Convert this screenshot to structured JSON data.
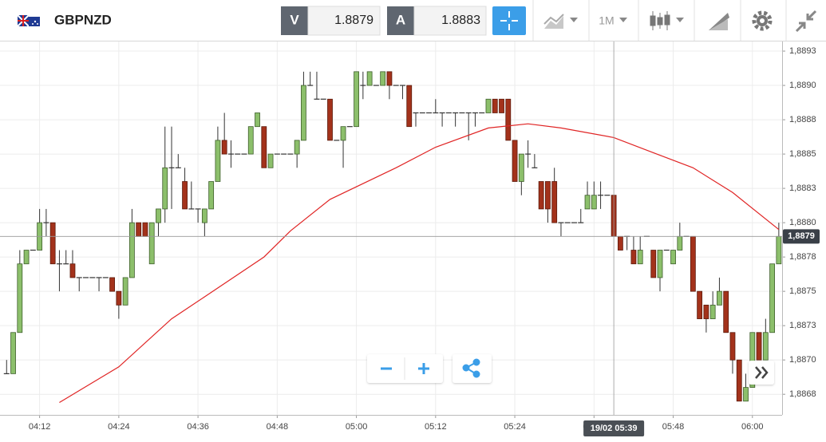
{
  "toolbar": {
    "symbol": "GBPNZD",
    "bid_label": "V",
    "bid": 1.8879,
    "ask_label": "A",
    "ask": 1.8883,
    "timeframe": "1M"
  },
  "chart_data": {
    "type": "candlestick",
    "x": [
      247,
      248,
      249,
      250,
      251,
      252,
      253,
      254,
      255,
      256,
      257,
      258,
      259,
      260,
      261,
      262,
      263,
      264,
      265,
      266,
      267,
      268,
      269,
      270,
      271,
      272,
      273,
      274,
      275,
      276,
      277,
      278,
      279,
      280,
      281,
      282,
      283,
      284,
      285,
      286,
      287,
      288,
      289,
      290,
      291,
      292,
      293,
      294,
      295,
      296,
      297,
      298,
      299,
      300,
      301,
      302,
      303,
      304,
      305,
      306,
      307,
      308,
      309,
      310,
      311,
      312,
      313,
      314,
      315,
      316,
      317,
      318,
      319,
      320,
      321,
      322,
      323,
      324,
      325,
      326,
      327,
      328,
      329,
      330,
      331,
      332,
      333,
      334,
      335,
      336,
      337,
      338,
      339,
      340,
      341,
      342,
      343,
      344,
      345,
      346,
      347,
      348,
      349,
      350,
      351,
      352,
      353,
      354,
      355,
      356,
      357,
      358,
      359,
      360,
      361,
      362,
      363,
      364
    ],
    "open": [
      1.8869,
      1.8869,
      1.8872,
      1.8877,
      1.8878,
      1.8878,
      1.888,
      1.888,
      1.8877,
      1.8877,
      1.8877,
      1.8876,
      1.8876,
      1.8876,
      1.8876,
      1.8876,
      1.8876,
      1.8875,
      1.8874,
      1.8876,
      1.888,
      1.888,
      1.8877,
      1.888,
      1.8881,
      1.8884,
      1.8884,
      1.8883,
      1.8881,
      1.8881,
      1.888,
      1.8881,
      1.8883,
      1.8886,
      1.8885,
      1.8885,
      1.8885,
      1.8885,
      1.8887,
      1.8887,
      1.8884,
      1.8885,
      1.8885,
      1.8885,
      1.8885,
      1.8886,
      1.889,
      1.8889,
      1.8889,
      1.8889,
      1.8886,
      1.8886,
      1.8887,
      1.8887,
      1.889,
      1.889,
      1.889,
      1.889,
      1.8891,
      1.889,
      1.889,
      1.889,
      1.8888,
      1.8888,
      1.8888,
      1.8888,
      1.8888,
      1.8888,
      1.8888,
      1.8888,
      1.8888,
      1.8888,
      1.8888,
      1.8888,
      1.8889,
      1.8889,
      1.8889,
      1.8886,
      1.8883,
      1.8885,
      1.8884,
      1.8883,
      1.8883,
      1.8883,
      1.888,
      1.888,
      1.888,
      1.888,
      1.8881,
      1.8881,
      1.8882,
      1.8882,
      1.8882,
      1.8879,
      1.8879,
      1.8878,
      1.8877,
      1.8879,
      1.8878,
      1.8876,
      1.8878,
      1.8877,
      1.8878,
      1.8879,
      1.8879,
      1.8875,
      1.8874,
      1.8873,
      1.8874,
      1.8875,
      1.8872,
      1.887,
      1.8867,
      1.8868,
      1.8872,
      1.887,
      1.8872,
      1.8877
    ],
    "high": [
      1.887,
      1.8872,
      1.8878,
      1.8878,
      1.8878,
      1.8881,
      1.8881,
      1.888,
      1.8878,
      1.8878,
      1.8878,
      1.8876,
      1.8876,
      1.8876,
      1.8876,
      1.8876,
      1.8876,
      1.8875,
      1.8876,
      1.8881,
      1.888,
      1.888,
      1.888,
      1.8881,
      1.8887,
      1.8887,
      1.8885,
      1.8884,
      1.8883,
      1.8881,
      1.8881,
      1.8883,
      1.8887,
      1.8888,
      1.8886,
      1.8885,
      1.8885,
      1.8887,
      1.8888,
      1.8887,
      1.8885,
      1.8885,
      1.8885,
      1.8885,
      1.8886,
      1.8891,
      1.8891,
      1.8891,
      1.8889,
      1.8889,
      1.8886,
      1.8887,
      1.8887,
      1.8891,
      1.8891,
      1.8891,
      1.889,
      1.8891,
      1.8891,
      1.889,
      1.889,
      1.889,
      1.8888,
      1.8888,
      1.8888,
      1.8889,
      1.8888,
      1.8888,
      1.8888,
      1.8888,
      1.8888,
      1.8888,
      1.8888,
      1.8889,
      1.8889,
      1.8889,
      1.8889,
      1.8886,
      1.8885,
      1.8886,
      1.8885,
      1.8883,
      1.8883,
      1.8884,
      1.888,
      1.888,
      1.888,
      1.8881,
      1.8883,
      1.8883,
      1.8883,
      1.8882,
      1.8882,
      1.8879,
      1.8879,
      1.8879,
      1.8879,
      1.8879,
      1.8878,
      1.8878,
      1.8878,
      1.8878,
      1.888,
      1.8879,
      1.8879,
      1.8875,
      1.8874,
      1.8875,
      1.8876,
      1.8875,
      1.8872,
      1.887,
      1.8869,
      1.8872,
      1.8872,
      1.8873,
      1.8877,
      1.888
    ],
    "low": [
      1.8869,
      1.8869,
      1.8872,
      1.8877,
      1.8878,
      1.8878,
      1.8879,
      1.8877,
      1.8875,
      1.8877,
      1.8876,
      1.8875,
      1.8876,
      1.8876,
      1.8875,
      1.8876,
      1.8875,
      1.8873,
      1.8874,
      1.8876,
      1.8879,
      1.8879,
      1.8877,
      1.8879,
      1.888,
      1.8881,
      1.8884,
      1.8881,
      1.8881,
      1.888,
      1.8879,
      1.8881,
      1.8883,
      1.8885,
      1.8884,
      1.8885,
      1.8885,
      1.8885,
      1.8887,
      1.8884,
      1.8884,
      1.8885,
      1.8885,
      1.8885,
      1.8884,
      1.8886,
      1.889,
      1.8889,
      1.8889,
      1.8886,
      1.8886,
      1.8884,
      1.8887,
      1.8887,
      1.8889,
      1.889,
      1.889,
      1.889,
      1.8889,
      1.889,
      1.8889,
      1.8887,
      1.8887,
      1.8888,
      1.8888,
      1.8888,
      1.8887,
      1.8888,
      1.8887,
      1.8888,
      1.8886,
      1.8887,
      1.8888,
      1.8888,
      1.8888,
      1.8888,
      1.8886,
      1.8883,
      1.8882,
      1.8884,
      1.8884,
      1.8881,
      1.888,
      1.888,
      1.8879,
      1.888,
      1.888,
      1.888,
      1.8881,
      1.8881,
      1.8881,
      1.8882,
      1.8879,
      1.8878,
      1.8878,
      1.8877,
      1.8877,
      1.8879,
      1.8876,
      1.8875,
      1.8878,
      1.8877,
      1.8878,
      1.8879,
      1.8875,
      1.8873,
      1.8872,
      1.8873,
      1.8874,
      1.8872,
      1.8869,
      1.8867,
      1.8867,
      1.8868,
      1.887,
      1.887,
      1.8872,
      1.8877
    ],
    "close": [
      1.8869,
      1.8872,
      1.8877,
      1.8878,
      1.8878,
      1.888,
      1.888,
      1.8877,
      1.8877,
      1.8877,
      1.8876,
      1.8876,
      1.8876,
      1.8876,
      1.8876,
      1.8876,
      1.8875,
      1.8874,
      1.8876,
      1.888,
      1.8879,
      1.8879,
      1.888,
      1.8881,
      1.8884,
      1.8884,
      1.8884,
      1.8881,
      1.8881,
      1.8881,
      1.8881,
      1.8883,
      1.8886,
      1.8885,
      1.8885,
      1.8885,
      1.8885,
      1.8887,
      1.8888,
      1.8884,
      1.8885,
      1.8885,
      1.8885,
      1.8885,
      1.8886,
      1.889,
      1.889,
      1.8889,
      1.8889,
      1.8886,
      1.8886,
      1.8887,
      1.8887,
      1.8891,
      1.889,
      1.8891,
      1.889,
      1.8891,
      1.889,
      1.889,
      1.889,
      1.8887,
      1.8888,
      1.8888,
      1.8888,
      1.8888,
      1.8888,
      1.8888,
      1.8888,
      1.8888,
      1.8888,
      1.8888,
      1.8888,
      1.8889,
      1.8888,
      1.8888,
      1.8886,
      1.8883,
      1.8885,
      1.8885,
      1.8884,
      1.8881,
      1.8881,
      1.888,
      1.888,
      1.888,
      1.888,
      1.888,
      1.8882,
      1.8882,
      1.8882,
      1.8882,
      1.8879,
      1.8878,
      1.8879,
      1.8877,
      1.8878,
      1.8879,
      1.8876,
      1.8878,
      1.8878,
      1.8878,
      1.8879,
      1.8879,
      1.8875,
      1.8873,
      1.8873,
      1.8874,
      1.8875,
      1.8872,
      1.887,
      1.8867,
      1.8868,
      1.8872,
      1.887,
      1.8872,
      1.8877,
      1.8879
    ],
    "up_color": "#8cbf6b",
    "down_color": "#a3321b",
    "ma": {
      "color": "#e02424",
      "x": [
        255,
        264,
        272,
        277,
        286,
        290,
        296,
        306,
        312,
        320,
        326,
        331,
        339,
        345,
        351,
        357,
        364
      ],
      "values": [
        1.88669,
        1.88695,
        1.8873,
        1.88746,
        1.88775,
        1.88794,
        1.88817,
        1.8884,
        1.88855,
        1.88869,
        1.88872,
        1.88869,
        1.88862,
        1.88851,
        1.8884,
        1.88822,
        1.88795
      ]
    },
    "xlim": [
      246,
      364.5
    ],
    "ylim": [
      1.8866,
      1.88932
    ],
    "xticks": [
      {
        "value": 252,
        "label": "04:12"
      },
      {
        "value": 264,
        "label": "04:24"
      },
      {
        "value": 276,
        "label": "04:36"
      },
      {
        "value": 288,
        "label": "04:48"
      },
      {
        "value": 300,
        "label": "05:00"
      },
      {
        "value": 312,
        "label": "05:12"
      },
      {
        "value": 324,
        "label": "05:24"
      },
      {
        "value": 336,
        "label": "05:36"
      },
      {
        "value": 348,
        "label": "05:48"
      },
      {
        "value": 360,
        "label": "06:00"
      }
    ],
    "yticks": [
      {
        "value": 1.88675,
        "label": "1,8868"
      },
      {
        "value": 1.887,
        "label": "1,8870"
      },
      {
        "value": 1.88725,
        "label": "1,8873"
      },
      {
        "value": 1.8875,
        "label": "1,8875"
      },
      {
        "value": 1.88775,
        "label": "1,8878"
      },
      {
        "value": 1.888,
        "label": "1,8880"
      },
      {
        "value": 1.88825,
        "label": "1,8883"
      },
      {
        "value": 1.8885,
        "label": "1,8885"
      },
      {
        "value": 1.88875,
        "label": "1,8888"
      },
      {
        "value": 1.889,
        "label": "1,8890"
      },
      {
        "value": 1.88925,
        "label": "1,8893"
      }
    ],
    "grid": true,
    "price_line": {
      "value": 1.8879,
      "label": "1,8879"
    },
    "crosshair": {
      "value": 339,
      "label": "19/02 05:39"
    }
  }
}
